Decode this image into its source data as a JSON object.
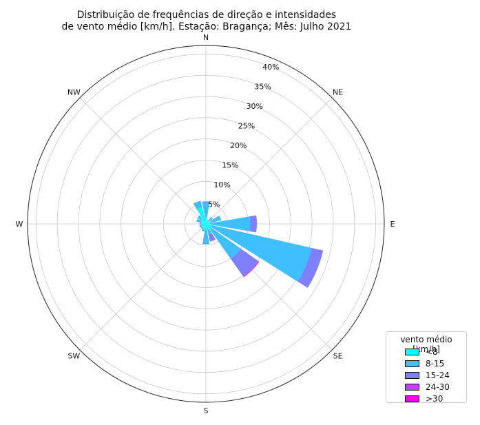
{
  "chart_data": {
    "type": "windrose",
    "title_lines": [
      "Distribuição de frequências de direção e intensidades",
      "de vento médio [km/h]. Estação: Bragança; Mês: Julho 2021"
    ],
    "directions": [
      "N",
      "NNE",
      "NE",
      "ENE",
      "E",
      "ESE",
      "SE",
      "SSE",
      "S",
      "SSW",
      "SW",
      "WSW",
      "W",
      "WNW",
      "NW",
      "NNW"
    ],
    "direction_labels": [
      "N",
      "NE",
      "E",
      "SE",
      "S",
      "SW",
      "W",
      "NW"
    ],
    "radial_ticks": [
      "5%",
      "10%",
      "15%",
      "20%",
      "25%",
      "30%",
      "35%",
      "40%"
    ],
    "radial_max": 42,
    "legend": {
      "title": "vento médio [km/h]",
      "entries": [
        {
          "label": "<8",
          "color": "#00ffff"
        },
        {
          "label": "8-15",
          "color": "#40bfff"
        },
        {
          "label": "15-24",
          "color": "#7f80ff"
        },
        {
          "label": "24-30",
          "color": "#bf40ff"
        },
        {
          "label": ">30",
          "color": "#ff00ff"
        }
      ]
    },
    "series": [
      {
        "name": "<8",
        "values": [
          1.5,
          0.5,
          0.8,
          1.2,
          1.2,
          1.5,
          1.6,
          1.3,
          1.2,
          1.3,
          1.1,
          1.0,
          1.0,
          1.1,
          1.3,
          4.0
        ]
      },
      {
        "name": "8-15",
        "values": [
          3.5,
          0.5,
          1.2,
          2.5,
          9.2,
          24.0,
          8.5,
          1.2,
          3.6,
          0.6,
          0.4,
          0.6,
          0.5,
          1.2,
          1.2,
          1.6
        ]
      },
      {
        "name": "15-24",
        "values": [
          0.3,
          0.0,
          0.0,
          0.0,
          1.6,
          2.8,
          5.0,
          1.8,
          0.0,
          0.0,
          0.0,
          0.0,
          0.0,
          0.0,
          0.0,
          0.0
        ]
      },
      {
        "name": "24-30",
        "values": [
          0.0,
          0.0,
          0.0,
          0.0,
          0.0,
          0.0,
          0.3,
          0.0,
          0.0,
          0.0,
          0.0,
          0.0,
          0.0,
          0.0,
          0.0,
          0.0
        ]
      },
      {
        "name": ">30",
        "values": [
          0.0,
          0.0,
          0.0,
          0.0,
          0.0,
          0.0,
          0.0,
          0.0,
          0.0,
          0.0,
          0.0,
          0.0,
          0.0,
          0.0,
          0.0,
          0.0
        ]
      }
    ]
  }
}
